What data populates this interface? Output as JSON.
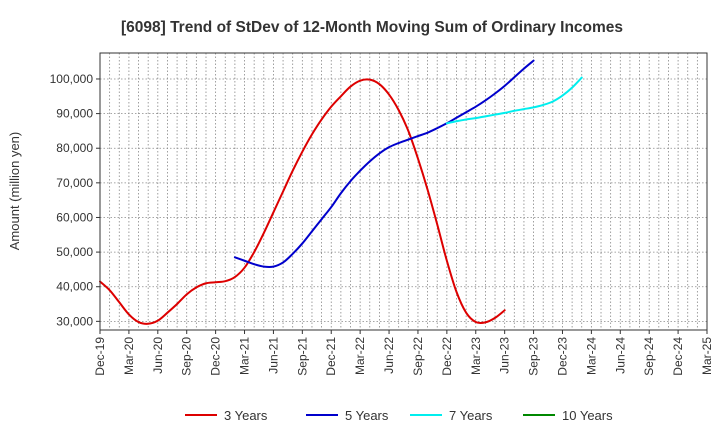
{
  "chart_data": {
    "type": "line",
    "title": "[6098]  Trend of StDev of 12-Month Moving Sum of Ordinary Incomes",
    "xlabel": "",
    "ylabel": "Amount (million yen)",
    "ylim": [
      27500,
      107500
    ],
    "yticks": [
      30000,
      40000,
      50000,
      60000,
      70000,
      80000,
      90000,
      100000
    ],
    "ytick_labels": [
      "30,000",
      "40,000",
      "50,000",
      "60,000",
      "70,000",
      "80,000",
      "90,000",
      "100,000"
    ],
    "x_categories": [
      "Dec-19",
      "Mar-20",
      "Jun-20",
      "Sep-20",
      "Dec-20",
      "Mar-21",
      "Jun-21",
      "Sep-21",
      "Dec-21",
      "Mar-22",
      "Jun-22",
      "Sep-22",
      "Dec-22",
      "Mar-23",
      "Jun-23",
      "Sep-23",
      "Dec-23",
      "Mar-24",
      "Jun-24",
      "Sep-24",
      "Dec-24",
      "Mar-25"
    ],
    "grid": true,
    "legend_position": "bottom",
    "series": [
      {
        "name": "3 Years",
        "color": "#dd0000",
        "start_index": 0,
        "values": [
          41500,
          39000,
          35500,
          32000,
          29800,
          29300,
          30200,
          32500,
          35000,
          37800,
          39800,
          41000,
          41300,
          41600,
          42800,
          45500,
          50000,
          55500,
          61500,
          67500,
          73500,
          79000,
          84000,
          88300,
          92000,
          95000,
          97800,
          99500,
          99800,
          98500,
          95500,
          91000,
          85000,
          77000,
          68000,
          58000,
          47500,
          38500,
          32500,
          29800,
          29700,
          31000,
          33200
        ]
      },
      {
        "name": "5 Years",
        "color": "#0000cc",
        "start_index": 14,
        "values": [
          48500,
          47500,
          46500,
          45800,
          45800,
          47000,
          49500,
          52500,
          56000,
          59500,
          63000,
          67000,
          70500,
          73500,
          76200,
          78500,
          80300,
          81500,
          82500,
          83500,
          84500,
          85800,
          87200,
          88800,
          90400,
          92000,
          93800,
          95800,
          98000,
          100500,
          103000,
          105300
        ]
      },
      {
        "name": "7 Years",
        "color": "#00eeee",
        "start_index": 36,
        "values": [
          87200,
          87800,
          88300,
          88700,
          89200,
          89700,
          90200,
          90800,
          91300,
          91800,
          92500,
          93500,
          95200,
          97500,
          100400
        ]
      },
      {
        "name": "10 Years",
        "color": "#008800",
        "start_index": 0,
        "values": []
      }
    ]
  }
}
